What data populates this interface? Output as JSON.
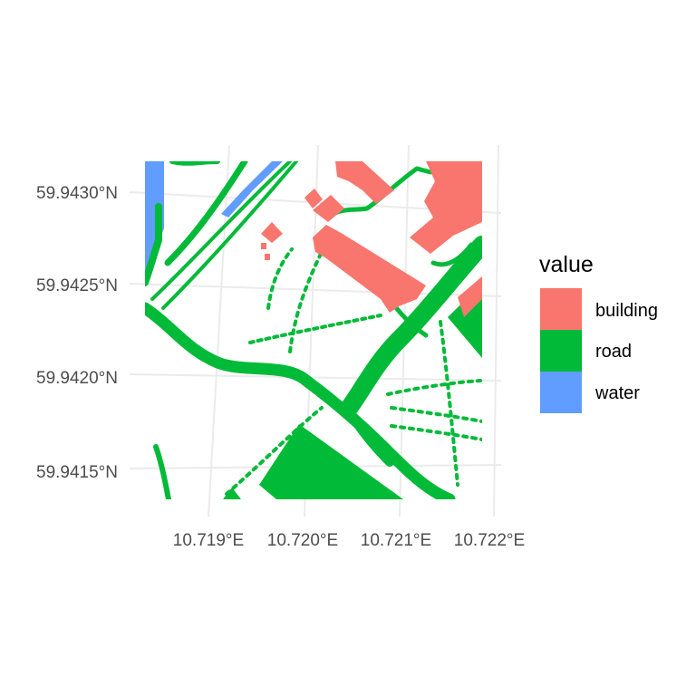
{
  "map": {
    "lat_labels": [
      "59.9430°N",
      "59.9425°N",
      "59.9420°N",
      "59.9415°N"
    ],
    "lon_labels": [
      "10.719°E",
      "10.720°E",
      "10.721°E",
      "10.722°E"
    ]
  },
  "legend": {
    "title": "value",
    "items": [
      {
        "label": "building",
        "color": "#F8766D"
      },
      {
        "label": "road",
        "color": "#00BA38"
      },
      {
        "label": "water",
        "color": "#619CFF"
      }
    ]
  },
  "colors": {
    "building": "#F8766D",
    "road": "#00BA38",
    "water": "#619CFF",
    "grid": "#ebebeb",
    "background": "#ffffff"
  }
}
